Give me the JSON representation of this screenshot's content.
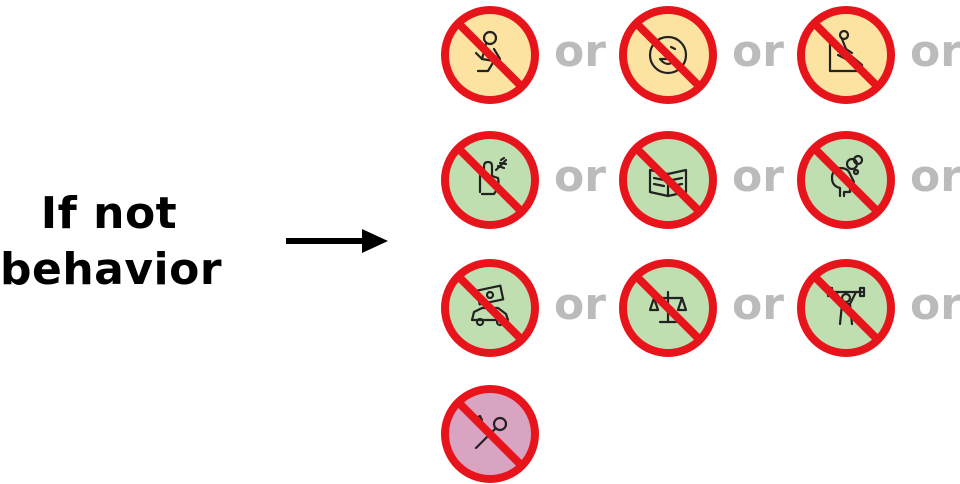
{
  "heading": {
    "line1": "If not",
    "line2": "behavior"
  },
  "connector_text": "or",
  "colors": {
    "forbid_red": "#e8141b",
    "or_gray": "#bbbbbb",
    "yellow": "#fde3a2",
    "green": "#bfdfb0",
    "pink": "#d9a4c2"
  },
  "items": [
    {
      "icon": "person-sitting-icon",
      "color": "yellow"
    },
    {
      "icon": "smiley-face-icon",
      "color": "yellow"
    },
    {
      "icon": "skateboard-ramp-icon",
      "color": "yellow"
    },
    {
      "icon": "hand-feather-icon",
      "color": "green"
    },
    {
      "icon": "open-book-icon",
      "color": "green"
    },
    {
      "icon": "head-thought-icon",
      "color": "green"
    },
    {
      "icon": "car-money-icon",
      "color": "green"
    },
    {
      "icon": "balance-scale-icon",
      "color": "green"
    },
    {
      "icon": "weightlifter-icon",
      "color": "green"
    },
    {
      "icon": "wrench-screwdriver-icon",
      "color": "pink"
    }
  ]
}
